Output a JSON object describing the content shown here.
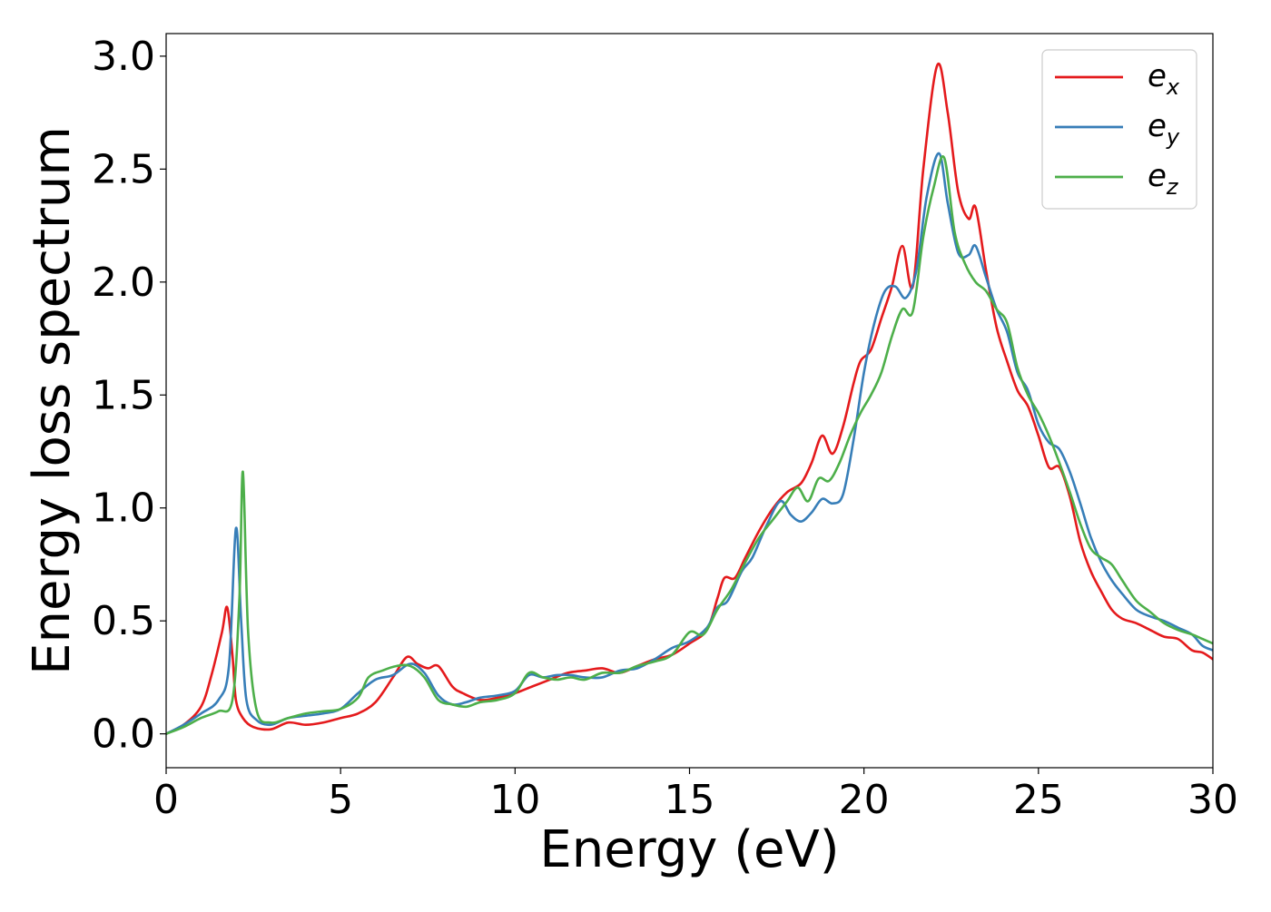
{
  "chart_data": {
    "type": "line",
    "xlabel": "Energy (eV)",
    "ylabel": "Energy loss spectrum",
    "xlim": [
      0,
      30
    ],
    "ylim": [
      -0.15,
      3.1
    ],
    "xticks": [
      0,
      5,
      10,
      15,
      20,
      25,
      30
    ],
    "yticks": [
      0.0,
      0.5,
      1.0,
      1.5,
      2.0,
      2.5,
      3.0
    ],
    "xtick_labels": [
      "0",
      "5",
      "10",
      "15",
      "20",
      "25",
      "30"
    ],
    "ytick_labels": [
      "0.0",
      "0.5",
      "1.0",
      "1.5",
      "2.0",
      "2.5",
      "3.0"
    ],
    "grid": false,
    "legend": {
      "placement": "top-right"
    },
    "series": [
      {
        "name": "e_x",
        "label_base": "e",
        "label_sub": "x",
        "color": "#e41a1c",
        "points": [
          [
            0,
            0.0
          ],
          [
            0.5,
            0.04
          ],
          [
            1.0,
            0.12
          ],
          [
            1.3,
            0.26
          ],
          [
            1.6,
            0.45
          ],
          [
            1.75,
            0.56
          ],
          [
            1.9,
            0.35
          ],
          [
            2.0,
            0.15
          ],
          [
            2.2,
            0.07
          ],
          [
            2.5,
            0.03
          ],
          [
            3.0,
            0.02
          ],
          [
            3.5,
            0.05
          ],
          [
            4.0,
            0.04
          ],
          [
            4.5,
            0.05
          ],
          [
            5.0,
            0.07
          ],
          [
            5.5,
            0.09
          ],
          [
            6.0,
            0.14
          ],
          [
            6.5,
            0.25
          ],
          [
            6.9,
            0.34
          ],
          [
            7.2,
            0.31
          ],
          [
            7.5,
            0.29
          ],
          [
            7.8,
            0.3
          ],
          [
            8.2,
            0.21
          ],
          [
            8.5,
            0.18
          ],
          [
            9.0,
            0.15
          ],
          [
            9.5,
            0.16
          ],
          [
            10.0,
            0.18
          ],
          [
            10.5,
            0.21
          ],
          [
            11.0,
            0.24
          ],
          [
            11.5,
            0.27
          ],
          [
            12.0,
            0.28
          ],
          [
            12.5,
            0.29
          ],
          [
            13.0,
            0.27
          ],
          [
            13.5,
            0.3
          ],
          [
            14.0,
            0.33
          ],
          [
            14.5,
            0.35
          ],
          [
            15.0,
            0.4
          ],
          [
            15.5,
            0.46
          ],
          [
            15.8,
            0.6
          ],
          [
            16.0,
            0.69
          ],
          [
            16.3,
            0.69
          ],
          [
            16.6,
            0.78
          ],
          [
            17.0,
            0.9
          ],
          [
            17.4,
            1.0
          ],
          [
            17.8,
            1.07
          ],
          [
            18.2,
            1.11
          ],
          [
            18.5,
            1.2
          ],
          [
            18.8,
            1.32
          ],
          [
            19.1,
            1.24
          ],
          [
            19.4,
            1.36
          ],
          [
            19.7,
            1.55
          ],
          [
            19.9,
            1.65
          ],
          [
            20.2,
            1.7
          ],
          [
            20.5,
            1.84
          ],
          [
            20.8,
            1.98
          ],
          [
            21.1,
            2.16
          ],
          [
            21.4,
            1.98
          ],
          [
            21.7,
            2.5
          ],
          [
            22.1,
            2.96
          ],
          [
            22.4,
            2.75
          ],
          [
            22.7,
            2.4
          ],
          [
            23.0,
            2.28
          ],
          [
            23.2,
            2.33
          ],
          [
            23.5,
            2.05
          ],
          [
            23.8,
            1.8
          ],
          [
            24.1,
            1.65
          ],
          [
            24.4,
            1.52
          ],
          [
            24.7,
            1.45
          ],
          [
            25.0,
            1.32
          ],
          [
            25.3,
            1.18
          ],
          [
            25.6,
            1.18
          ],
          [
            25.9,
            1.05
          ],
          [
            26.2,
            0.85
          ],
          [
            26.5,
            0.72
          ],
          [
            26.8,
            0.63
          ],
          [
            27.1,
            0.55
          ],
          [
            27.4,
            0.51
          ],
          [
            27.8,
            0.49
          ],
          [
            28.2,
            0.46
          ],
          [
            28.6,
            0.43
          ],
          [
            29.0,
            0.42
          ],
          [
            29.4,
            0.37
          ],
          [
            29.7,
            0.36
          ],
          [
            30.0,
            0.33
          ]
        ]
      },
      {
        "name": "e_y",
        "label_base": "e",
        "label_sub": "y",
        "color": "#377eb8",
        "points": [
          [
            0,
            0.0
          ],
          [
            0.5,
            0.04
          ],
          [
            1.0,
            0.09
          ],
          [
            1.5,
            0.15
          ],
          [
            1.8,
            0.3
          ],
          [
            2.0,
            0.91
          ],
          [
            2.15,
            0.5
          ],
          [
            2.3,
            0.15
          ],
          [
            2.6,
            0.06
          ],
          [
            3.0,
            0.04
          ],
          [
            3.5,
            0.07
          ],
          [
            4.0,
            0.08
          ],
          [
            4.5,
            0.09
          ],
          [
            5.0,
            0.11
          ],
          [
            5.5,
            0.18
          ],
          [
            6.0,
            0.24
          ],
          [
            6.5,
            0.26
          ],
          [
            7.0,
            0.31
          ],
          [
            7.4,
            0.27
          ],
          [
            7.8,
            0.17
          ],
          [
            8.2,
            0.13
          ],
          [
            8.6,
            0.14
          ],
          [
            9.0,
            0.16
          ],
          [
            9.5,
            0.17
          ],
          [
            10.0,
            0.19
          ],
          [
            10.4,
            0.26
          ],
          [
            10.8,
            0.25
          ],
          [
            11.2,
            0.26
          ],
          [
            11.6,
            0.26
          ],
          [
            12.0,
            0.25
          ],
          [
            12.5,
            0.25
          ],
          [
            13.0,
            0.28
          ],
          [
            13.5,
            0.29
          ],
          [
            14.0,
            0.33
          ],
          [
            14.5,
            0.38
          ],
          [
            15.0,
            0.41
          ],
          [
            15.5,
            0.47
          ],
          [
            15.8,
            0.56
          ],
          [
            16.1,
            0.59
          ],
          [
            16.5,
            0.72
          ],
          [
            16.8,
            0.78
          ],
          [
            17.2,
            0.92
          ],
          [
            17.6,
            1.03
          ],
          [
            17.9,
            0.97
          ],
          [
            18.2,
            0.94
          ],
          [
            18.5,
            0.98
          ],
          [
            18.8,
            1.04
          ],
          [
            19.1,
            1.02
          ],
          [
            19.4,
            1.06
          ],
          [
            19.7,
            1.3
          ],
          [
            20.0,
            1.6
          ],
          [
            20.3,
            1.82
          ],
          [
            20.6,
            1.96
          ],
          [
            20.9,
            1.98
          ],
          [
            21.2,
            1.93
          ],
          [
            21.5,
            2.05
          ],
          [
            21.8,
            2.38
          ],
          [
            22.15,
            2.57
          ],
          [
            22.4,
            2.35
          ],
          [
            22.7,
            2.13
          ],
          [
            23.0,
            2.12
          ],
          [
            23.2,
            2.16
          ],
          [
            23.5,
            2.02
          ],
          [
            23.8,
            1.88
          ],
          [
            24.1,
            1.78
          ],
          [
            24.4,
            1.6
          ],
          [
            24.7,
            1.52
          ],
          [
            25.0,
            1.37
          ],
          [
            25.3,
            1.29
          ],
          [
            25.6,
            1.26
          ],
          [
            25.9,
            1.16
          ],
          [
            26.2,
            1.02
          ],
          [
            26.5,
            0.87
          ],
          [
            26.8,
            0.76
          ],
          [
            27.1,
            0.68
          ],
          [
            27.4,
            0.62
          ],
          [
            27.8,
            0.55
          ],
          [
            28.2,
            0.52
          ],
          [
            28.6,
            0.5
          ],
          [
            29.0,
            0.47
          ],
          [
            29.4,
            0.44
          ],
          [
            29.7,
            0.39
          ],
          [
            30.0,
            0.37
          ]
        ]
      },
      {
        "name": "e_z",
        "label_base": "e",
        "label_sub": "z",
        "color": "#4daf4a",
        "points": [
          [
            0,
            0.0
          ],
          [
            0.5,
            0.03
          ],
          [
            1.0,
            0.07
          ],
          [
            1.5,
            0.1
          ],
          [
            1.9,
            0.15
          ],
          [
            2.1,
            0.6
          ],
          [
            2.2,
            1.16
          ],
          [
            2.35,
            0.45
          ],
          [
            2.6,
            0.1
          ],
          [
            3.0,
            0.05
          ],
          [
            3.5,
            0.07
          ],
          [
            4.0,
            0.09
          ],
          [
            4.5,
            0.1
          ],
          [
            5.0,
            0.11
          ],
          [
            5.5,
            0.16
          ],
          [
            5.8,
            0.25
          ],
          [
            6.2,
            0.28
          ],
          [
            6.6,
            0.3
          ],
          [
            7.0,
            0.3
          ],
          [
            7.4,
            0.25
          ],
          [
            7.8,
            0.15
          ],
          [
            8.2,
            0.13
          ],
          [
            8.6,
            0.12
          ],
          [
            9.0,
            0.14
          ],
          [
            9.5,
            0.15
          ],
          [
            10.0,
            0.18
          ],
          [
            10.4,
            0.27
          ],
          [
            10.8,
            0.25
          ],
          [
            11.2,
            0.24
          ],
          [
            11.6,
            0.25
          ],
          [
            12.0,
            0.24
          ],
          [
            12.5,
            0.27
          ],
          [
            13.0,
            0.27
          ],
          [
            13.5,
            0.3
          ],
          [
            14.0,
            0.32
          ],
          [
            14.5,
            0.35
          ],
          [
            15.0,
            0.45
          ],
          [
            15.4,
            0.44
          ],
          [
            15.8,
            0.55
          ],
          [
            16.2,
            0.64
          ],
          [
            16.6,
            0.76
          ],
          [
            17.0,
            0.87
          ],
          [
            17.4,
            0.95
          ],
          [
            17.8,
            1.03
          ],
          [
            18.1,
            1.09
          ],
          [
            18.4,
            1.03
          ],
          [
            18.7,
            1.13
          ],
          [
            19.0,
            1.12
          ],
          [
            19.3,
            1.2
          ],
          [
            19.6,
            1.32
          ],
          [
            19.9,
            1.42
          ],
          [
            20.2,
            1.5
          ],
          [
            20.5,
            1.6
          ],
          [
            20.8,
            1.76
          ],
          [
            21.1,
            1.88
          ],
          [
            21.4,
            1.87
          ],
          [
            21.7,
            2.2
          ],
          [
            22.0,
            2.42
          ],
          [
            22.3,
            2.55
          ],
          [
            22.6,
            2.22
          ],
          [
            22.9,
            2.08
          ],
          [
            23.2,
            2.0
          ],
          [
            23.5,
            1.96
          ],
          [
            23.8,
            1.88
          ],
          [
            24.1,
            1.82
          ],
          [
            24.4,
            1.62
          ],
          [
            24.7,
            1.5
          ],
          [
            25.0,
            1.42
          ],
          [
            25.3,
            1.32
          ],
          [
            25.6,
            1.2
          ],
          [
            25.9,
            1.07
          ],
          [
            26.2,
            0.93
          ],
          [
            26.5,
            0.82
          ],
          [
            26.8,
            0.78
          ],
          [
            27.1,
            0.75
          ],
          [
            27.4,
            0.68
          ],
          [
            27.8,
            0.59
          ],
          [
            28.2,
            0.54
          ],
          [
            28.6,
            0.49
          ],
          [
            29.0,
            0.46
          ],
          [
            29.4,
            0.44
          ],
          [
            29.7,
            0.42
          ],
          [
            30.0,
            0.4
          ]
        ]
      }
    ]
  }
}
